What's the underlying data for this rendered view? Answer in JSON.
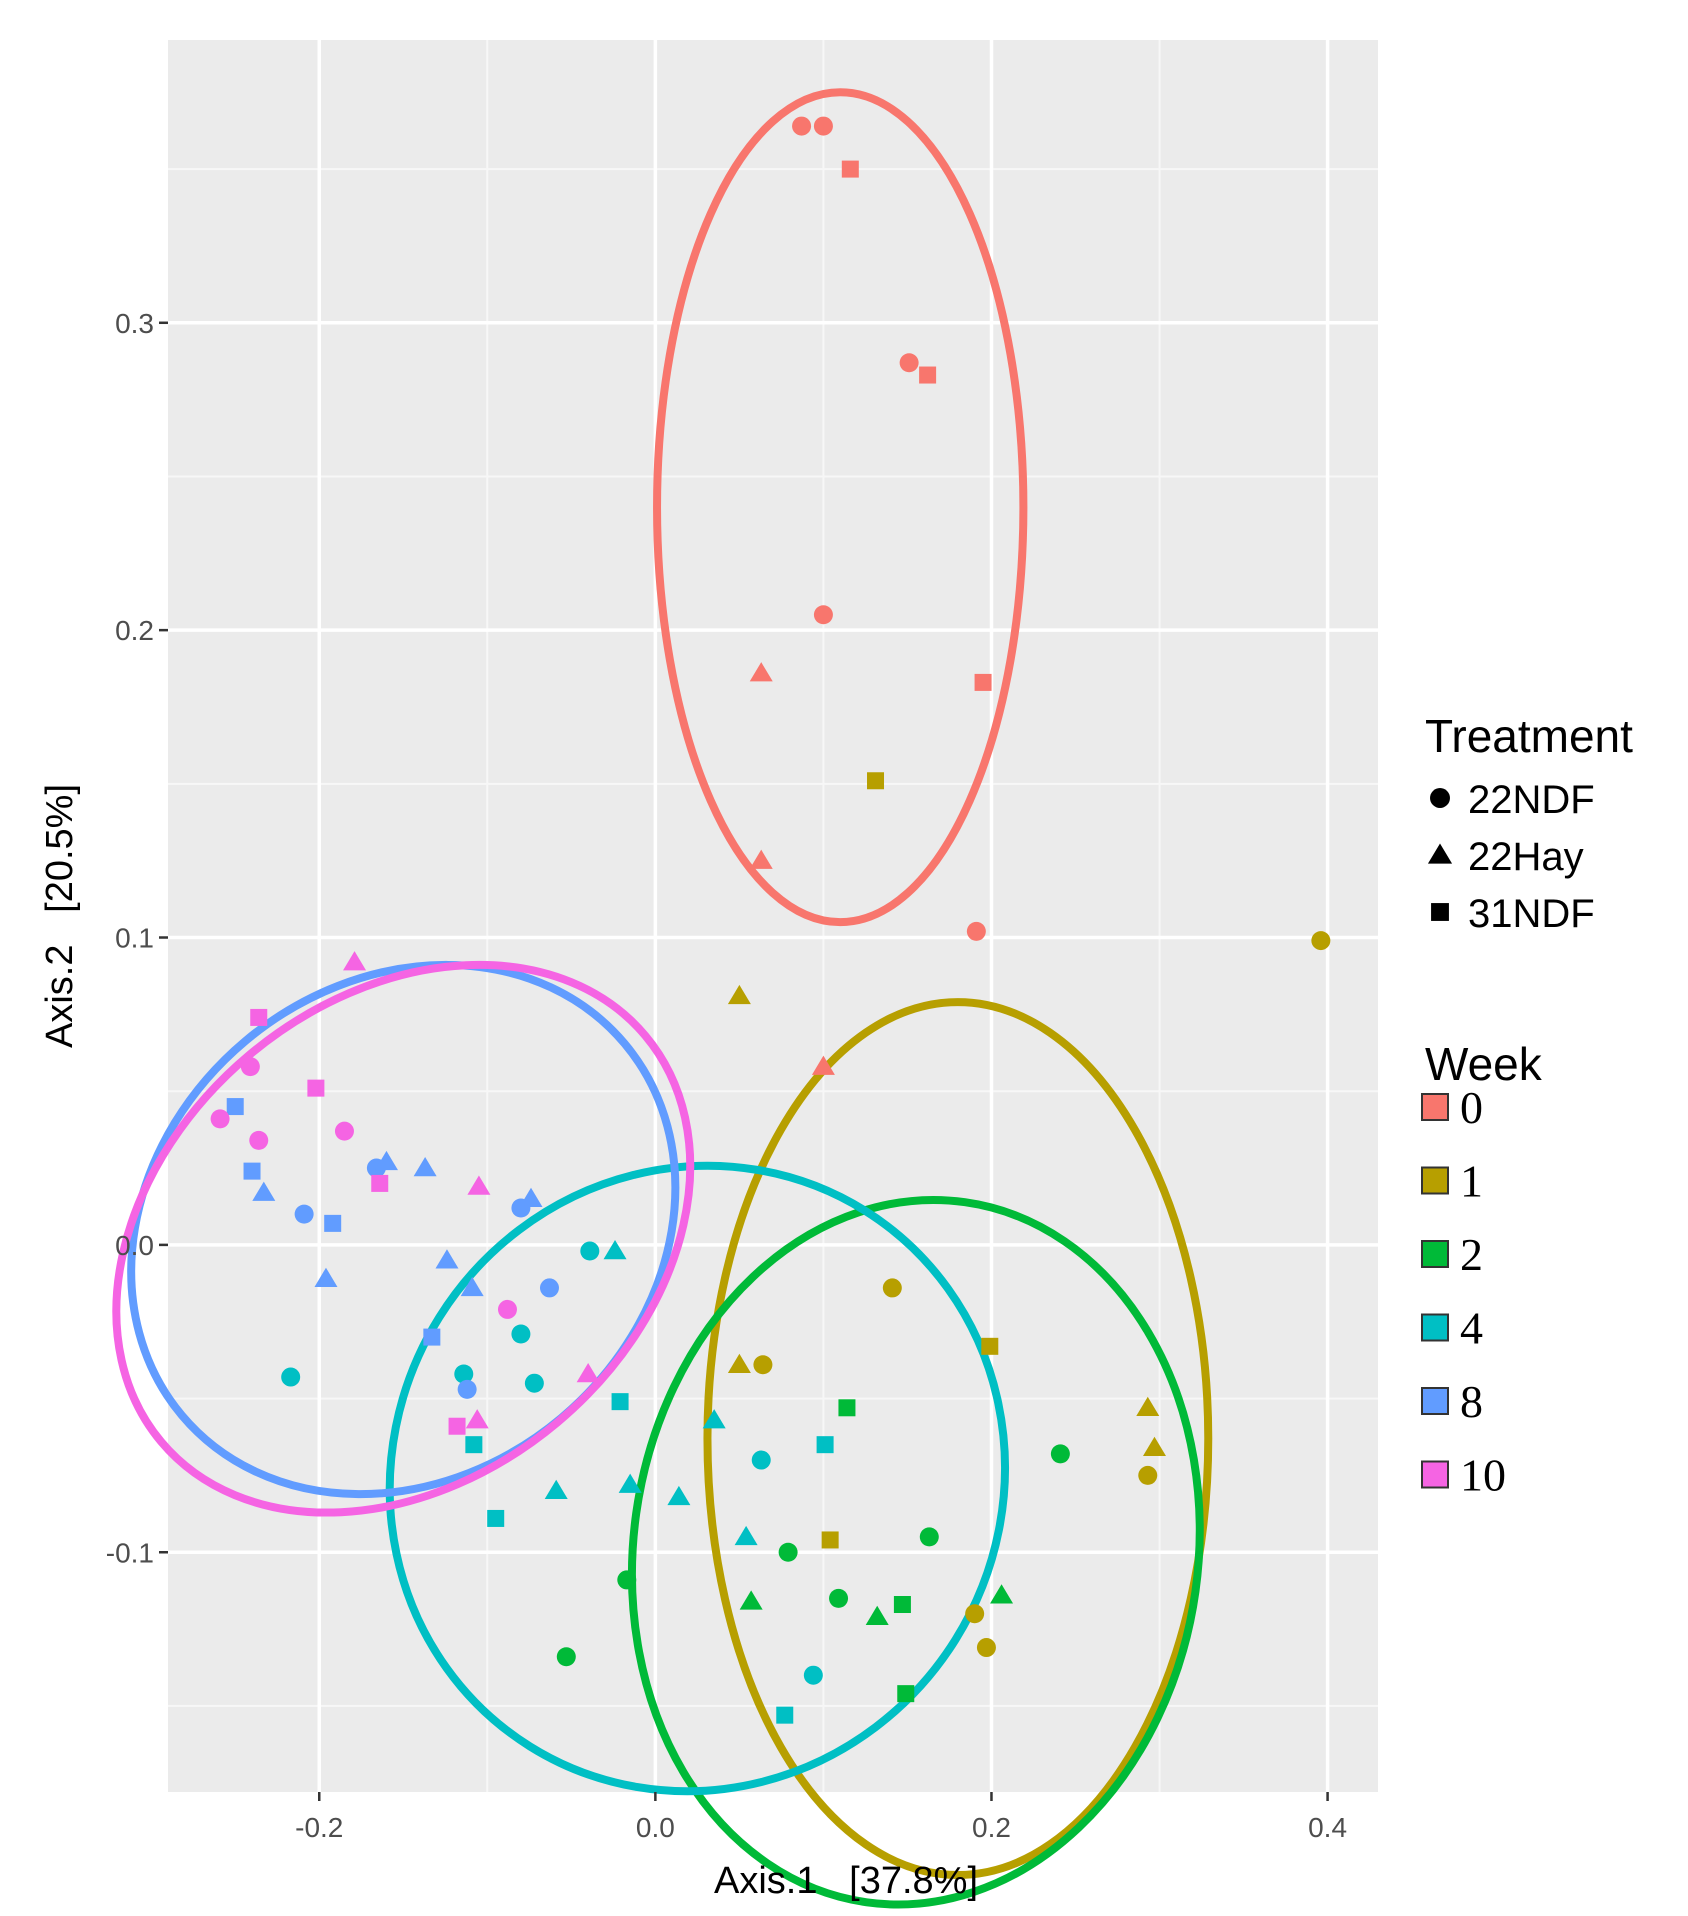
{
  "chart_data": {
    "type": "scatter",
    "title": "",
    "xlabel": "Axis.1   [37.8%]",
    "ylabel": "Axis.2   [20.5%]",
    "xlim": [
      -0.29,
      0.43
    ],
    "ylim": [
      -0.178,
      0.392
    ],
    "x_ticks": [
      -0.2,
      0.0,
      0.2,
      0.4
    ],
    "x_tick_labels": [
      "-0.2",
      "0.0",
      "0.2",
      "0.4"
    ],
    "y_ticks": [
      -0.1,
      0.0,
      0.1,
      0.2,
      0.3
    ],
    "y_tick_labels": [
      "-0.1",
      "0.0",
      "0.1",
      "0.2",
      "0.3"
    ],
    "grid": true,
    "legend": {
      "position": "right",
      "shape_title": "Treatment",
      "shapes": [
        {
          "label": "22NDF",
          "marker": "circle"
        },
        {
          "label": "22Hay",
          "marker": "triangle"
        },
        {
          "label": "31NDF",
          "marker": "square"
        }
      ],
      "color_title": "Week",
      "colors": [
        {
          "label": "0",
          "color": "#F8766D"
        },
        {
          "label": "1",
          "color": "#B79F00"
        },
        {
          "label": "2",
          "color": "#00BA38"
        },
        {
          "label": "4",
          "color": "#00BFC4"
        },
        {
          "label": "8",
          "color": "#619CFF"
        },
        {
          "label": "10",
          "color": "#F564E3"
        }
      ]
    },
    "ellipses": [
      {
        "week": "0",
        "cx": 0.11,
        "cy": 0.24,
        "rx": 0.109,
        "ry": 0.135,
        "angle": 0
      },
      {
        "week": "1",
        "cx": 0.18,
        "cy": -0.063,
        "rx": 0.149,
        "ry": 0.142,
        "angle": 0
      },
      {
        "week": "2",
        "cx": 0.155,
        "cy": -0.1,
        "rx": 0.168,
        "ry": 0.115,
        "angle": 8
      },
      {
        "week": "4",
        "cx": 0.025,
        "cy": -0.076,
        "rx": 0.188,
        "ry": 0.099,
        "angle": -58
      },
      {
        "week": "8",
        "cx": -0.15,
        "cy": 0.005,
        "rx": 0.172,
        "ry": 0.08,
        "angle": -40
      },
      {
        "week": "10",
        "cx": -0.15,
        "cy": 0.002,
        "rx": 0.188,
        "ry": 0.078,
        "angle": -40
      }
    ],
    "points": [
      {
        "x": 0.087,
        "y": 0.364,
        "week": "0",
        "treatment": "22NDF"
      },
      {
        "x": 0.1,
        "y": 0.364,
        "week": "0",
        "treatment": "22NDF"
      },
      {
        "x": 0.116,
        "y": 0.35,
        "week": "0",
        "treatment": "31NDF"
      },
      {
        "x": 0.151,
        "y": 0.287,
        "week": "0",
        "treatment": "22NDF"
      },
      {
        "x": 0.162,
        "y": 0.283,
        "week": "0",
        "treatment": "31NDF"
      },
      {
        "x": 0.1,
        "y": 0.205,
        "week": "0",
        "treatment": "22NDF"
      },
      {
        "x": 0.063,
        "y": 0.186,
        "week": "0",
        "treatment": "22Hay"
      },
      {
        "x": 0.195,
        "y": 0.183,
        "week": "0",
        "treatment": "31NDF"
      },
      {
        "x": 0.063,
        "y": 0.125,
        "week": "0",
        "treatment": "22Hay"
      },
      {
        "x": 0.191,
        "y": 0.102,
        "week": "0",
        "treatment": "22NDF"
      },
      {
        "x": 0.1,
        "y": 0.058,
        "week": "0",
        "treatment": "22Hay"
      },
      {
        "x": 0.131,
        "y": 0.151,
        "week": "1",
        "treatment": "31NDF"
      },
      {
        "x": 0.396,
        "y": 0.099,
        "week": "1",
        "treatment": "22NDF"
      },
      {
        "x": 0.05,
        "y": 0.081,
        "week": "1",
        "treatment": "22Hay"
      },
      {
        "x": 0.141,
        "y": -0.014,
        "week": "1",
        "treatment": "22NDF"
      },
      {
        "x": 0.199,
        "y": -0.033,
        "week": "1",
        "treatment": "31NDF"
      },
      {
        "x": 0.05,
        "y": -0.039,
        "week": "1",
        "treatment": "22Hay"
      },
      {
        "x": 0.064,
        "y": -0.039,
        "week": "1",
        "treatment": "22NDF"
      },
      {
        "x": 0.293,
        "y": -0.053,
        "week": "1",
        "treatment": "22Hay"
      },
      {
        "x": 0.297,
        "y": -0.066,
        "week": "1",
        "treatment": "22Hay"
      },
      {
        "x": 0.293,
        "y": -0.075,
        "week": "1",
        "treatment": "22NDF"
      },
      {
        "x": 0.104,
        "y": -0.096,
        "week": "1",
        "treatment": "31NDF"
      },
      {
        "x": 0.19,
        "y": -0.12,
        "week": "1",
        "treatment": "22NDF"
      },
      {
        "x": 0.197,
        "y": -0.131,
        "week": "1",
        "treatment": "22NDF"
      },
      {
        "x": 0.114,
        "y": -0.053,
        "week": "2",
        "treatment": "31NDF"
      },
      {
        "x": 0.241,
        "y": -0.068,
        "week": "2",
        "treatment": "22NDF"
      },
      {
        "x": 0.163,
        "y": -0.095,
        "week": "2",
        "treatment": "22NDF"
      },
      {
        "x": 0.079,
        "y": -0.1,
        "week": "2",
        "treatment": "22NDF"
      },
      {
        "x": -0.017,
        "y": -0.109,
        "week": "2",
        "treatment": "22NDF"
      },
      {
        "x": 0.057,
        "y": -0.116,
        "week": "2",
        "treatment": "22Hay"
      },
      {
        "x": 0.109,
        "y": -0.115,
        "week": "2",
        "treatment": "22NDF"
      },
      {
        "x": 0.147,
        "y": -0.117,
        "week": "2",
        "treatment": "31NDF"
      },
      {
        "x": 0.206,
        "y": -0.114,
        "week": "2",
        "treatment": "22Hay"
      },
      {
        "x": 0.132,
        "y": -0.121,
        "week": "2",
        "treatment": "22Hay"
      },
      {
        "x": -0.053,
        "y": -0.134,
        "week": "2",
        "treatment": "22NDF"
      },
      {
        "x": 0.149,
        "y": -0.146,
        "week": "2",
        "treatment": "31NDF"
      },
      {
        "x": -0.039,
        "y": -0.002,
        "week": "4",
        "treatment": "22NDF"
      },
      {
        "x": -0.024,
        "y": -0.002,
        "week": "4",
        "treatment": "22Hay"
      },
      {
        "x": -0.08,
        "y": -0.029,
        "week": "4",
        "treatment": "22NDF"
      },
      {
        "x": -0.114,
        "y": -0.042,
        "week": "4",
        "treatment": "22NDF"
      },
      {
        "x": -0.072,
        "y": -0.045,
        "week": "4",
        "treatment": "22NDF"
      },
      {
        "x": -0.217,
        "y": -0.043,
        "week": "4",
        "treatment": "22NDF"
      },
      {
        "x": -0.021,
        "y": -0.051,
        "week": "4",
        "treatment": "31NDF"
      },
      {
        "x": 0.035,
        "y": -0.057,
        "week": "4",
        "treatment": "22Hay"
      },
      {
        "x": -0.108,
        "y": -0.065,
        "week": "4",
        "treatment": "31NDF"
      },
      {
        "x": 0.101,
        "y": -0.065,
        "week": "4",
        "treatment": "31NDF"
      },
      {
        "x": 0.063,
        "y": -0.07,
        "week": "4",
        "treatment": "22NDF"
      },
      {
        "x": -0.059,
        "y": -0.08,
        "week": "4",
        "treatment": "22Hay"
      },
      {
        "x": -0.015,
        "y": -0.078,
        "week": "4",
        "treatment": "22Hay"
      },
      {
        "x": 0.014,
        "y": -0.082,
        "week": "4",
        "treatment": "22Hay"
      },
      {
        "x": -0.095,
        "y": -0.089,
        "week": "4",
        "treatment": "31NDF"
      },
      {
        "x": 0.054,
        "y": -0.095,
        "week": "4",
        "treatment": "22Hay"
      },
      {
        "x": 0.094,
        "y": -0.14,
        "week": "4",
        "treatment": "22NDF"
      },
      {
        "x": 0.077,
        "y": -0.153,
        "week": "4",
        "treatment": "31NDF"
      },
      {
        "x": -0.25,
        "y": 0.045,
        "week": "8",
        "treatment": "31NDF"
      },
      {
        "x": -0.166,
        "y": 0.025,
        "week": "8",
        "treatment": "22NDF"
      },
      {
        "x": -0.16,
        "y": 0.027,
        "week": "8",
        "treatment": "22Hay"
      },
      {
        "x": -0.137,
        "y": 0.025,
        "week": "8",
        "treatment": "22Hay"
      },
      {
        "x": -0.24,
        "y": 0.024,
        "week": "8",
        "treatment": "31NDF"
      },
      {
        "x": -0.233,
        "y": 0.017,
        "week": "8",
        "treatment": "22Hay"
      },
      {
        "x": -0.209,
        "y": 0.01,
        "week": "8",
        "treatment": "22NDF"
      },
      {
        "x": -0.192,
        "y": 0.007,
        "week": "8",
        "treatment": "31NDF"
      },
      {
        "x": -0.08,
        "y": 0.012,
        "week": "8",
        "treatment": "22NDF"
      },
      {
        "x": -0.074,
        "y": 0.015,
        "week": "8",
        "treatment": "22Hay"
      },
      {
        "x": -0.124,
        "y": -0.005,
        "week": "8",
        "treatment": "22Hay"
      },
      {
        "x": -0.196,
        "y": -0.011,
        "week": "8",
        "treatment": "22Hay"
      },
      {
        "x": -0.109,
        "y": -0.014,
        "week": "8",
        "treatment": "22Hay"
      },
      {
        "x": -0.063,
        "y": -0.014,
        "week": "8",
        "treatment": "22NDF"
      },
      {
        "x": -0.133,
        "y": -0.03,
        "week": "8",
        "treatment": "31NDF"
      },
      {
        "x": -0.112,
        "y": -0.047,
        "week": "8",
        "treatment": "22NDF"
      },
      {
        "x": -0.236,
        "y": 0.074,
        "week": "10",
        "treatment": "31NDF"
      },
      {
        "x": -0.179,
        "y": 0.092,
        "week": "10",
        "treatment": "22Hay"
      },
      {
        "x": -0.202,
        "y": 0.051,
        "week": "10",
        "treatment": "31NDF"
      },
      {
        "x": -0.241,
        "y": 0.058,
        "week": "10",
        "treatment": "22NDF"
      },
      {
        "x": -0.259,
        "y": 0.041,
        "week": "10",
        "treatment": "22NDF"
      },
      {
        "x": -0.185,
        "y": 0.037,
        "week": "10",
        "treatment": "22NDF"
      },
      {
        "x": -0.236,
        "y": 0.034,
        "week": "10",
        "treatment": "22NDF"
      },
      {
        "x": -0.164,
        "y": 0.02,
        "week": "10",
        "treatment": "31NDF"
      },
      {
        "x": -0.105,
        "y": 0.019,
        "week": "10",
        "treatment": "22Hay"
      },
      {
        "x": -0.088,
        "y": -0.021,
        "week": "10",
        "treatment": "22NDF"
      },
      {
        "x": -0.04,
        "y": -0.042,
        "week": "10",
        "treatment": "22Hay"
      },
      {
        "x": -0.106,
        "y": -0.057,
        "week": "10",
        "treatment": "22Hay"
      },
      {
        "x": -0.118,
        "y": -0.059,
        "week": "10",
        "treatment": "31NDF"
      }
    ]
  }
}
